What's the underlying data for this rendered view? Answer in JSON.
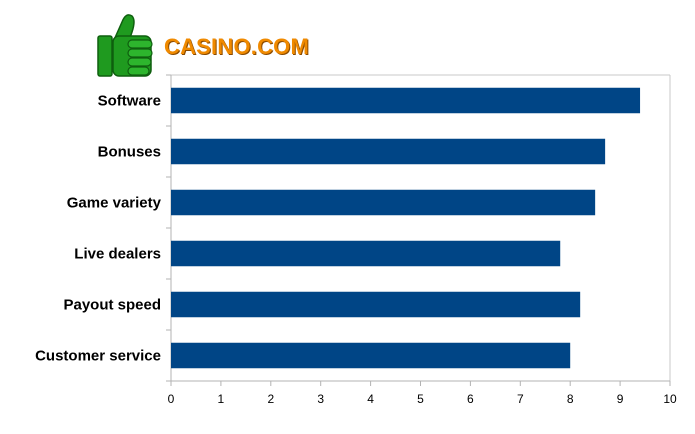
{
  "brand": {
    "name": "CASINO.COM",
    "icon": "thumbs-up-icon",
    "icon_color": "#1f9a1f",
    "text_color": "#f08a00"
  },
  "chart_data": {
    "type": "bar",
    "orientation": "horizontal",
    "categories": [
      "Software",
      "Bonuses",
      "Game variety",
      "Live dealers",
      "Payout speed",
      "Customer service"
    ],
    "values": [
      9.4,
      8.7,
      8.5,
      7.8,
      8.2,
      8.0
    ],
    "xlim": [
      0,
      10
    ],
    "xticks": [
      "0",
      "1",
      "2",
      "3",
      "4",
      "5",
      "6",
      "7",
      "8",
      "9",
      "10"
    ],
    "bar_color": "#004586",
    "grid": false,
    "legend": "none"
  }
}
